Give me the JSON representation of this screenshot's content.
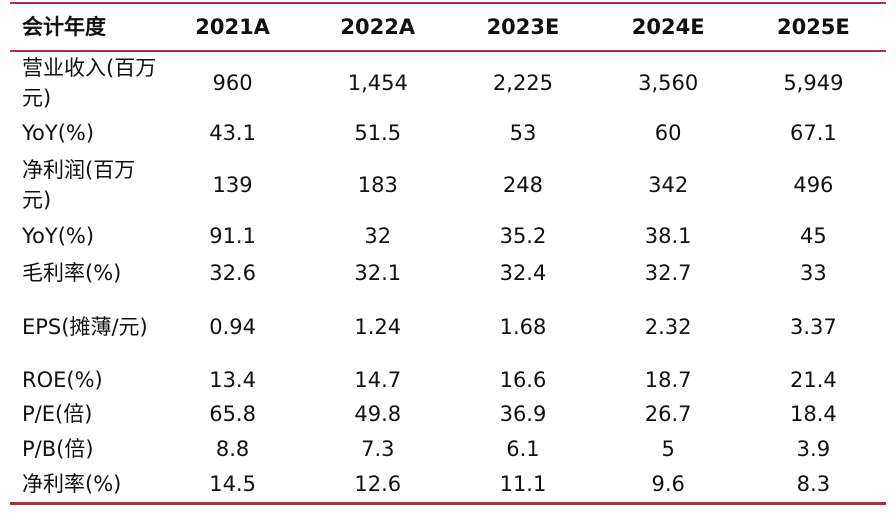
{
  "table": {
    "header": [
      "会计年度",
      "2021A",
      "2022A",
      "2023E",
      "2024E",
      "2025E"
    ],
    "rows": [
      [
        "营业收入(百万元)",
        "960",
        "1,454",
        "2,225",
        "3,560",
        "5,949"
      ],
      [
        "YoY(%)",
        "43.1",
        "51.5",
        "53",
        "60",
        "67.1"
      ],
      [
        "净利润(百万元)",
        "139",
        "183",
        "248",
        "342",
        "496"
      ],
      [
        "YoY(%)",
        "91.1",
        "32",
        "35.2",
        "38.1",
        "45"
      ],
      [
        "毛利率(%)",
        "32.6",
        "32.1",
        "32.4",
        "32.7",
        "33"
      ],
      [
        "EPS(摊薄/元)",
        "0.94",
        "1.24",
        "1.68",
        "2.32",
        "3.37"
      ],
      [
        "ROE(%)",
        "13.4",
        "14.7",
        "16.6",
        "18.7",
        "21.4"
      ],
      [
        "P/E(倍)",
        "65.8",
        "49.8",
        "36.9",
        "26.7",
        "18.4"
      ],
      [
        "P/B(倍)",
        "8.8",
        "7.3",
        "6.1",
        "5",
        "3.9"
      ],
      [
        "净利率(%)",
        "14.5",
        "12.6",
        "11.1",
        "9.6",
        "8.3"
      ]
    ]
  }
}
